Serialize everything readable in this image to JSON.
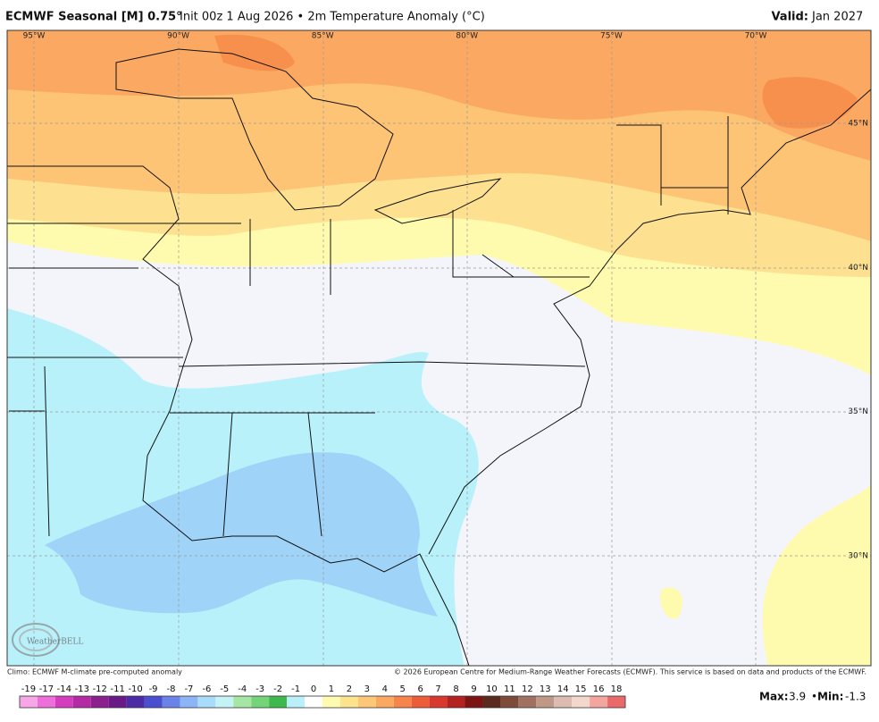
{
  "header": {
    "title": "ECMWF Seasonal [M] 0.75°",
    "subtitle": "Init 00z 1 Aug 2026 • 2m Temperature Anomaly (°C)",
    "valid_label": "Valid:",
    "valid": "Jan 2027"
  },
  "map": {
    "lon_labels": [
      "95°W",
      "90°W",
      "85°W",
      "80°W",
      "75°W",
      "70°W"
    ],
    "lat_labels": [
      "45°N",
      "40°N",
      "35°N",
      "30°N"
    ],
    "logo": "WeatherBELL"
  },
  "footer": {
    "climo_note": "Climo: ECMWF M-climate pre-computed anomaly",
    "copyright": "© 2026 European Centre for Medium-Range Weather Forecasts (ECMWF). This service is based on data and products of the ECMWF."
  },
  "colorbar": {
    "ticks": [
      -19,
      -17,
      -14,
      -13,
      -12,
      -11,
      -10,
      -9,
      -8,
      -7,
      -6,
      -5,
      -4,
      -3,
      -2,
      -1,
      0,
      1,
      2,
      3,
      4,
      5,
      6,
      7,
      8,
      9,
      10,
      11,
      12,
      13,
      14,
      15,
      16,
      18
    ],
    "colors": [
      "#f7a6e8",
      "#ee6fd9",
      "#d63cc0",
      "#b42aa6",
      "#8c1f8e",
      "#6a1a86",
      "#4d2aa6",
      "#4a4fd0",
      "#6b83e8",
      "#8db4f5",
      "#a9dcf8",
      "#c4f2f5",
      "#a6e6a4",
      "#73d47a",
      "#3fb94b",
      "#b9f0fb",
      "#ffffff",
      "#fffbb0",
      "#fde38e",
      "#fdc777",
      "#fba860",
      "#f7844a",
      "#ee5d39",
      "#d8392c",
      "#b32121",
      "#7d1414",
      "#5a2a1f",
      "#7e4a3a",
      "#a07060",
      "#c09888",
      "#dcbcb0",
      "#f3d6cc",
      "#f3a5a0",
      "#e86a6a"
    ]
  },
  "stats": {
    "max_label": "Max:",
    "max": 3.9,
    "min_label": "Min:",
    "min": -1.3
  }
}
